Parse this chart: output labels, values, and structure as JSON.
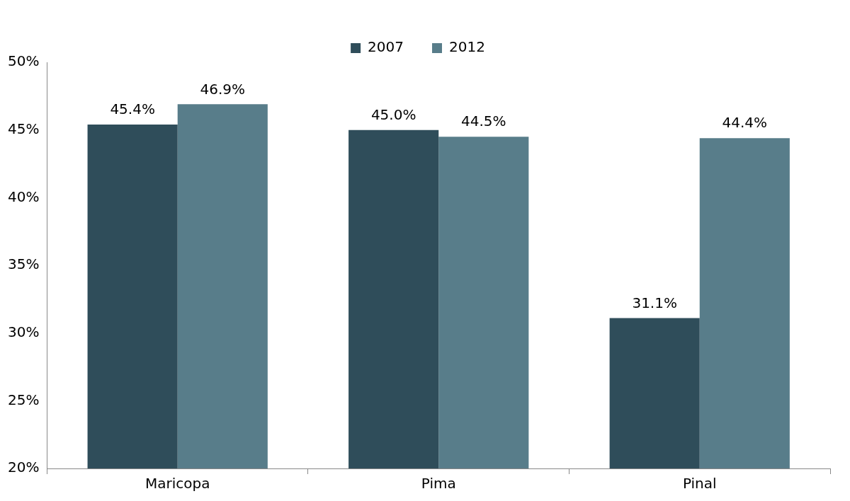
{
  "chart_data": {
    "type": "bar",
    "categories": [
      "Maricopa",
      "Pima",
      "Pinal"
    ],
    "series": [
      {
        "name": "2007",
        "color": "#2f4d5a",
        "values": [
          45.4,
          45.0,
          31.1
        ],
        "value_labels": [
          "45.4%",
          "45.0%",
          "31.1%"
        ]
      },
      {
        "name": "2012",
        "color": "#587d8a",
        "values": [
          46.9,
          44.5,
          44.4
        ],
        "value_labels": [
          "46.9%",
          "44.5%",
          "44.4%"
        ]
      }
    ],
    "ylim": [
      20,
      50
    ],
    "yticks": [
      {
        "value": 20,
        "label": "20%"
      },
      {
        "value": 25,
        "label": "25%"
      },
      {
        "value": 30,
        "label": "30%"
      },
      {
        "value": 35,
        "label": "35%"
      },
      {
        "value": 40,
        "label": "40%"
      },
      {
        "value": 45,
        "label": "45%"
      },
      {
        "value": 50,
        "label": "50%"
      }
    ],
    "grid": false,
    "legend": "top"
  }
}
